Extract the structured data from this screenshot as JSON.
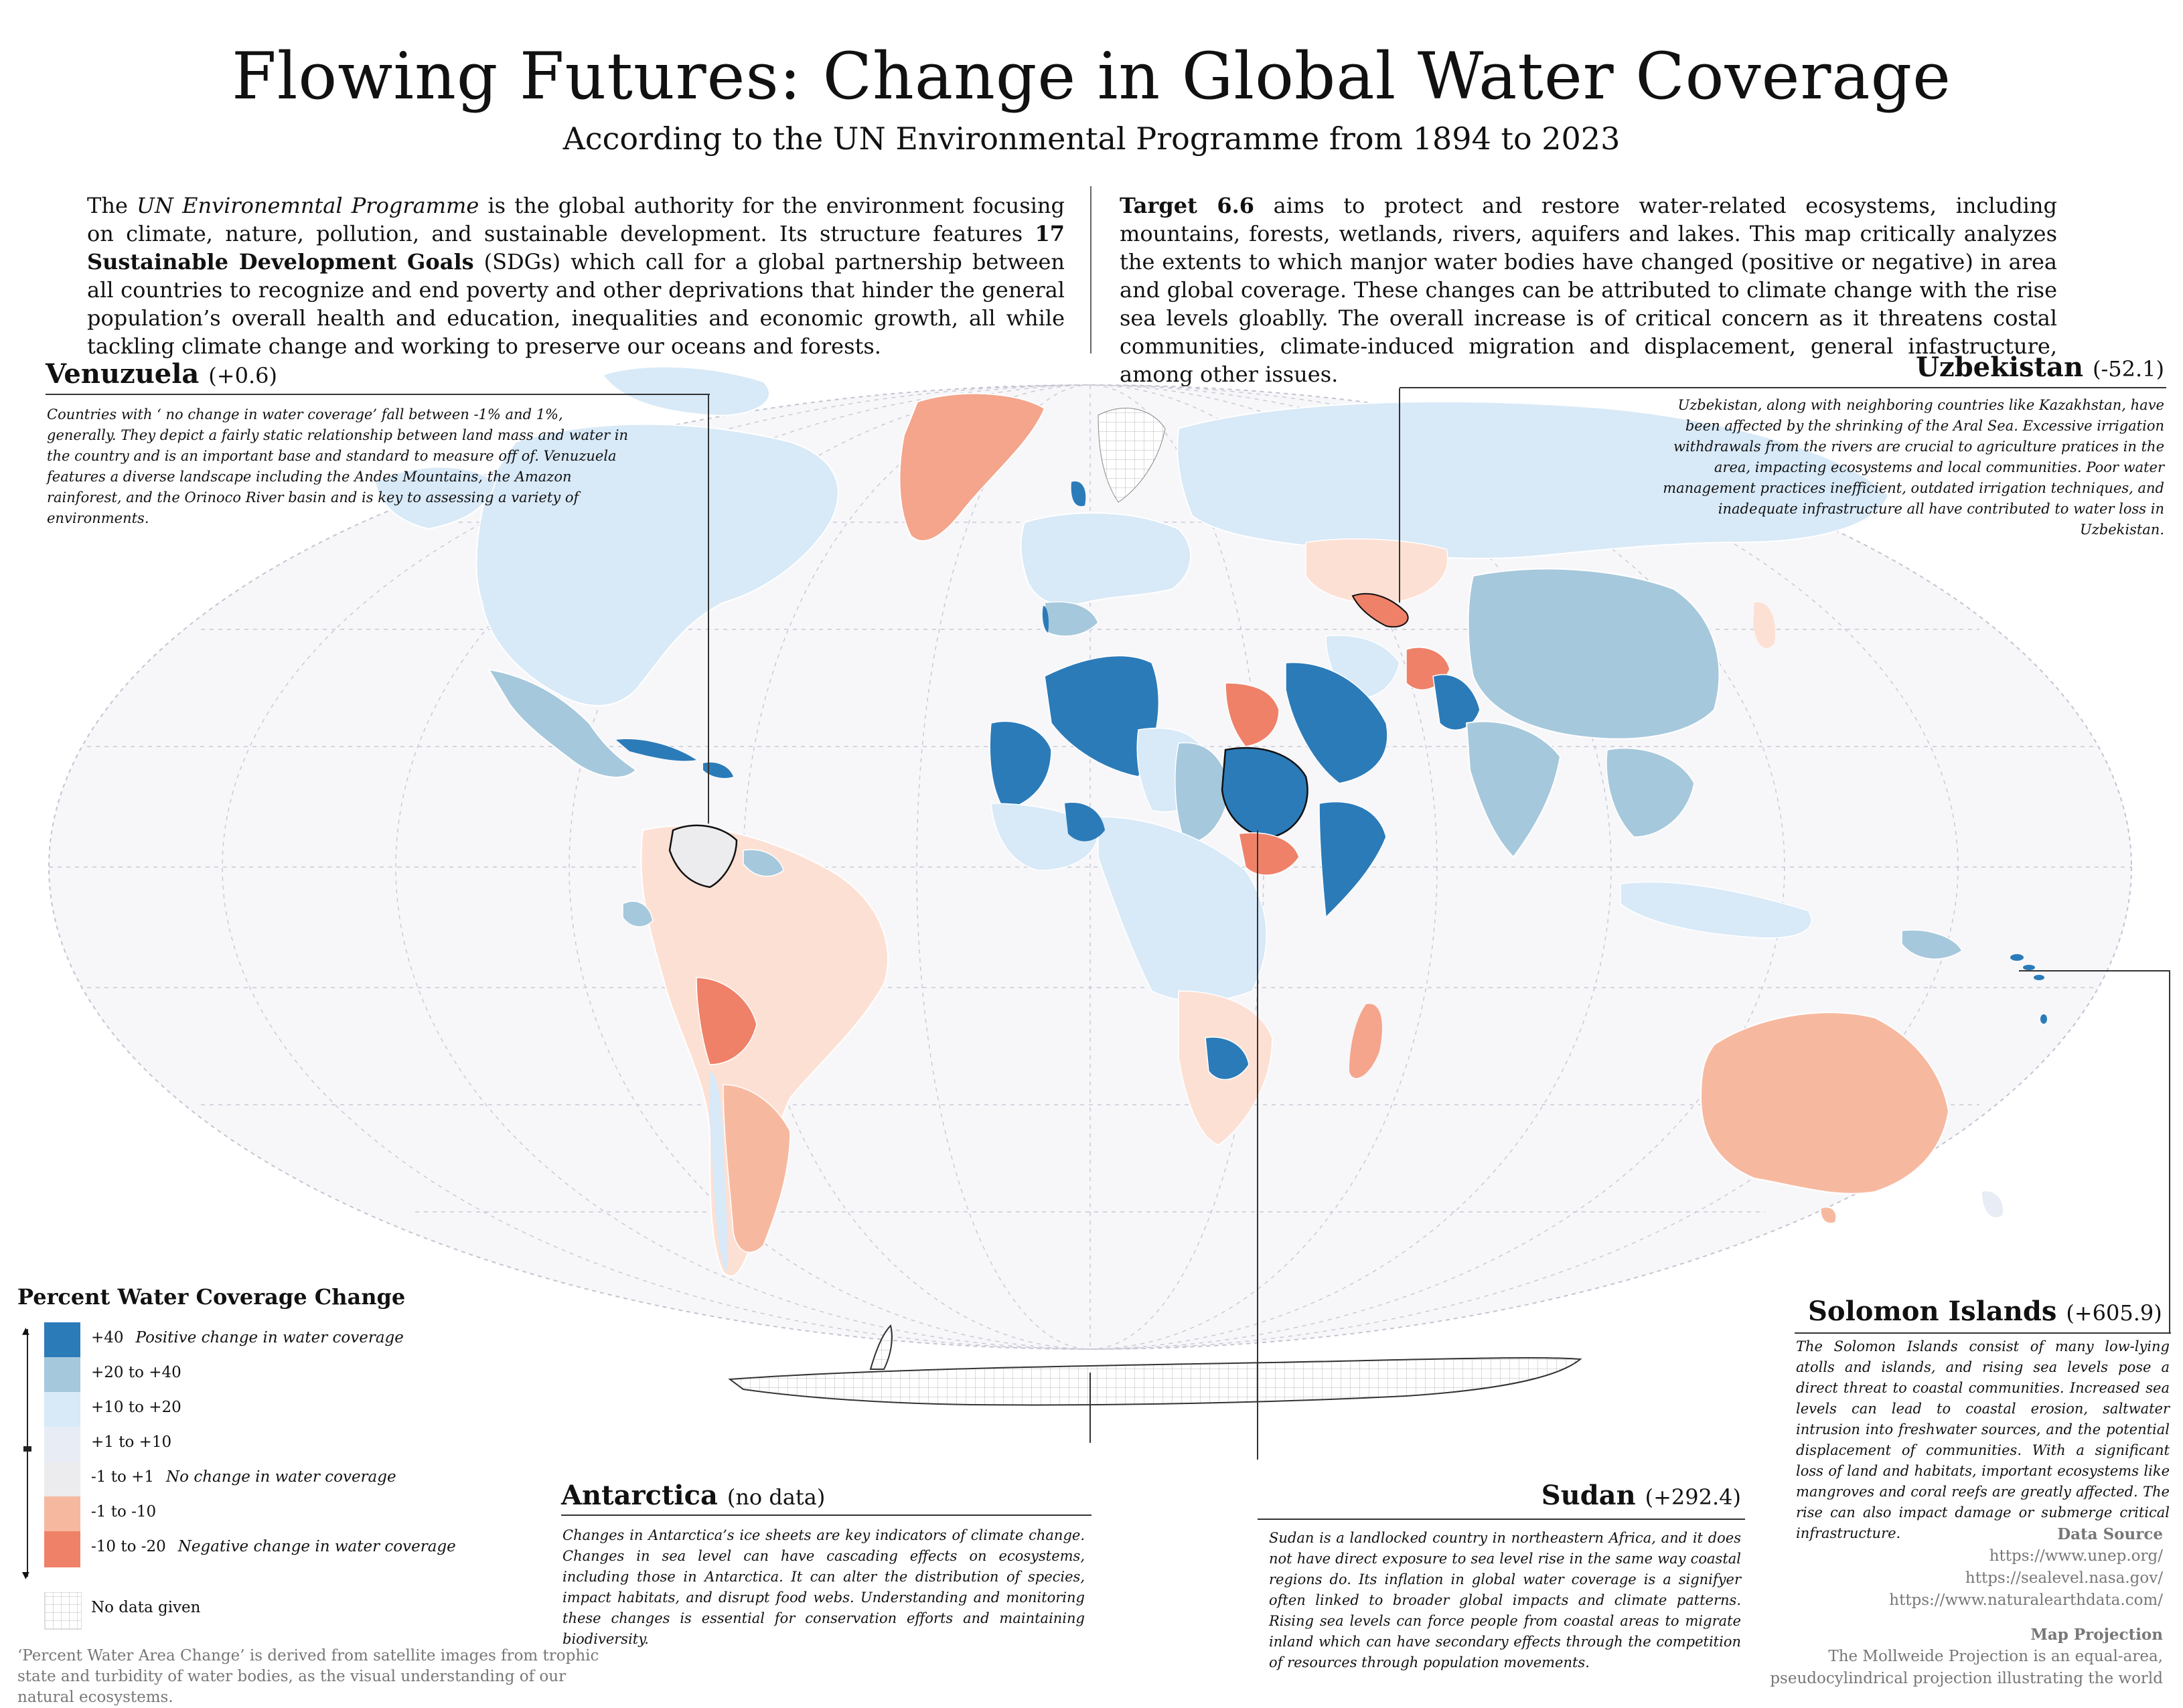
{
  "header": {
    "title": "Flowing Futures: Change in Global Water Coverage",
    "subtitle": "According to the UN Environmental Programme from 1894 to 2023"
  },
  "intro_left": {
    "p1_a": "The ",
    "p1_em": "UN Environemntal Programme",
    "p1_b": " is the global authority for the environment focusing on climate, nature, pollution, and sustainable development. Its structure features ",
    "p1_strong": "17 Sustainable Development Goals",
    "p1_c": " (SDGs) which call for a global partnership between all countries to recognize and end poverty and other deprivations that hinder the general population’s overall health and education, inequalities and economic growth, all while tackling climate change and working to preserve our oceans and forests."
  },
  "intro_right": {
    "strong": "Target 6.6",
    "text": " aims to protect and restore water-related ecosystems, including mountains, forests, wetlands, rivers, aquifers and lakes. This map critically analyzes the extents to which manjor water bodies have changed (positive or negative) in area and global coverage. These changes can be attributed to climate change with the rise sea levels gloablly. The overall increase is of critical concern as it threatens costal communities, climate-induced migration and displacement, general infastructure, among other issues."
  },
  "callouts": {
    "venezuela": {
      "name": "Venuzuela",
      "value": "(+0.6)",
      "body": "Countries with ‘ no change in water coverage’ fall between -1% and 1%, generally. They depict a fairly static relationship between land mass and water in the country and is an important base and standard to measure off of. Venuzuela features a diverse landscape including the Andes Mountains, the Amazon rainforest, and the Orinoco River basin and is key to assessing a variety of environments."
    },
    "uzbekistan": {
      "name": "Uzbekistan",
      "value": "(-52.1)",
      "body": "Uzbekistan, along with neighboring countries like Kazakhstan, have been affected by the shrinking of the Aral Sea. Excessive irrigation withdrawals from the rivers are crucial to agriculture pratices in the area, impacting ecosystems and local communities. Poor water management practices inefficient, outdated irrigation techniques, and inadequate infrastructure all have contributed to water loss in Uzbekistan."
    },
    "antarctica": {
      "name": "Antarctica",
      "value": "(no data)",
      "body": "Changes in Antarctica’s ice sheets are key indicators of climate change. Changes in sea level can have cascading effects on ecosystems, including those in Antarctica. It can alter the distribution of species, impact habitats, and disrupt food webs. Understanding and monitoring these changes is essential for conservation efforts and maintaining biodiversity."
    },
    "sudan": {
      "name": "Sudan",
      "value": "(+292.4)",
      "body": "Sudan is a landlocked country in northeastern Africa, and it does not have direct exposure to sea level rise in the same way coastal regions do. Its inflation in global water coverage is a signifyer often linked to broader global impacts and climate patterns. Rising sea levels can force people from coastal areas to migrate inland which can have secondary effects through the competition of resources through population movements."
    },
    "solomon": {
      "name": "Solomon Islands",
      "value": "(+605.9)",
      "body": "The Solomon Islands consist of many low-lying atolls and islands, and rising sea levels pose a direct threat to coastal communities. Increased sea levels can lead to coastal erosion, saltwater intrusion into freshwater sources, and the potential displacement of communities. With a significant loss of land and habitats, important ecosystems like mangroves and coral reefs are greatly affected. The rise can also impact damage or submerge critical infrastructure."
    }
  },
  "legend": {
    "title": "Percent Water Coverage Change",
    "items": [
      {
        "label": "+40",
        "note": "Positive change in water coverage",
        "color": "#2b7bb9"
      },
      {
        "label": "+20 to +40",
        "note": "",
        "color": "#a6c8dc"
      },
      {
        "label": "+10 to +20",
        "note": "",
        "color": "#d8e9f7"
      },
      {
        "label": "+1 to +10",
        "note": "",
        "color": "#e7ecf5"
      },
      {
        "label": "-1 to +1",
        "note": "No change in water coverage",
        "color": "#ececee"
      },
      {
        "label": "-1 to -10",
        "note": "",
        "color": "#f6b9a0"
      },
      {
        "label": "-10 to -20",
        "note": "Negative change in water coverage",
        "color": "#ef8169"
      }
    ],
    "nodata_label": "No data given"
  },
  "footnote": "‘Percent Water Area Change’ is derived from satellite images from trophic state and turbidity of water bodies, as the visual understanding of our natural ecosystems.",
  "sources": {
    "heading": "Data Source",
    "links": [
      "https://www.unep.org/",
      "https://sealevel.nasa.gov/",
      "https://www.naturalearthdata.com/"
    ],
    "proj_heading": "Map Projection",
    "proj_text_1": "The Mollweide Projection is an equal-area,",
    "proj_text_2": "pseudocylindrical projection illustrating the world"
  },
  "colors": {
    "ocean": "#f7f7fa",
    "graticule": "#c9c9d6",
    "nodata": "#ffffff"
  }
}
